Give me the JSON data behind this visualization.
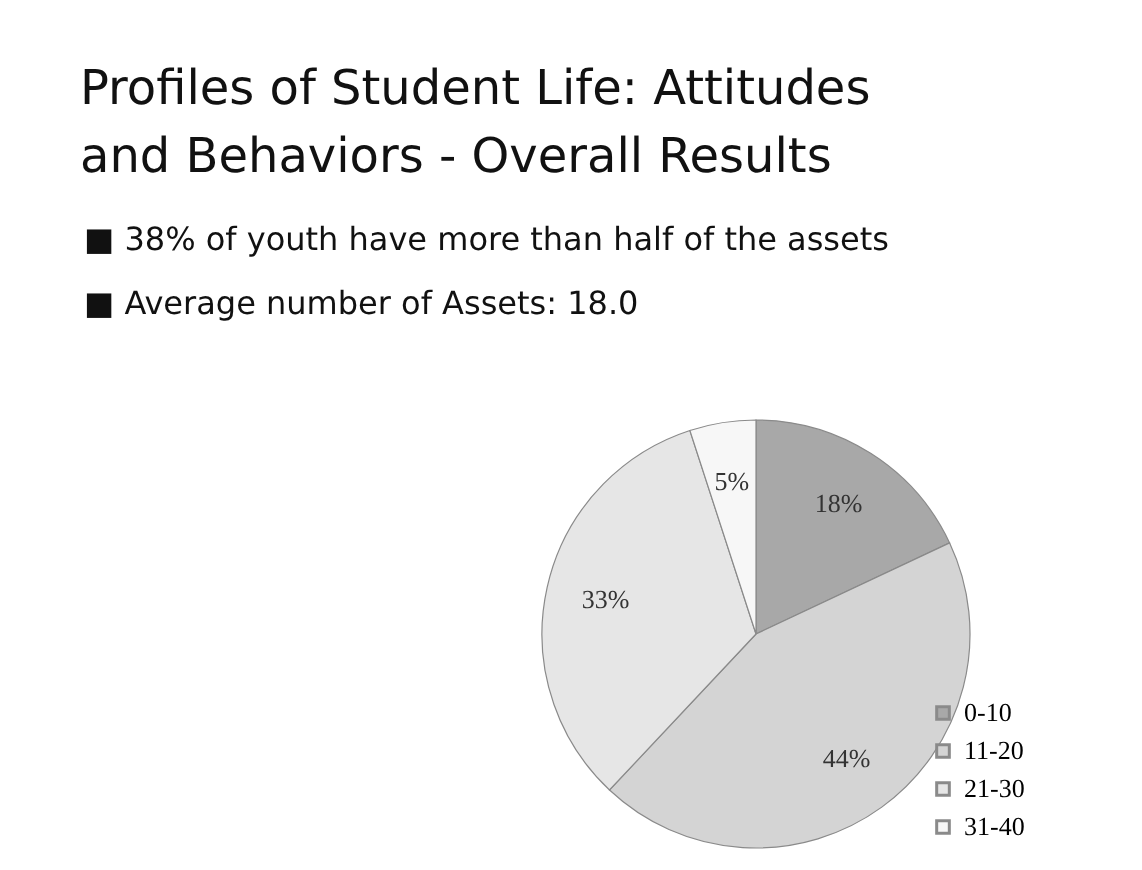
{
  "chart_data": {
    "type": "pie",
    "title": "Profiles of Student Life: Attitudes and Behaviors - Overall Results",
    "annotations": [
      "■ 38% of youth have more than half of the assets",
      "■ Average number of Assets: 18.0"
    ],
    "categories": [
      "0-10",
      "11-20",
      "21-30",
      "31-40"
    ],
    "values": [
      18,
      44,
      33,
      5
    ],
    "value_labels": [
      "18%",
      "44%",
      "33%",
      "5%"
    ],
    "colors": [
      "#a8a8a8",
      "#d4d4d4",
      "#e6e6e6",
      "#f7f7f7"
    ],
    "legend": "right"
  }
}
